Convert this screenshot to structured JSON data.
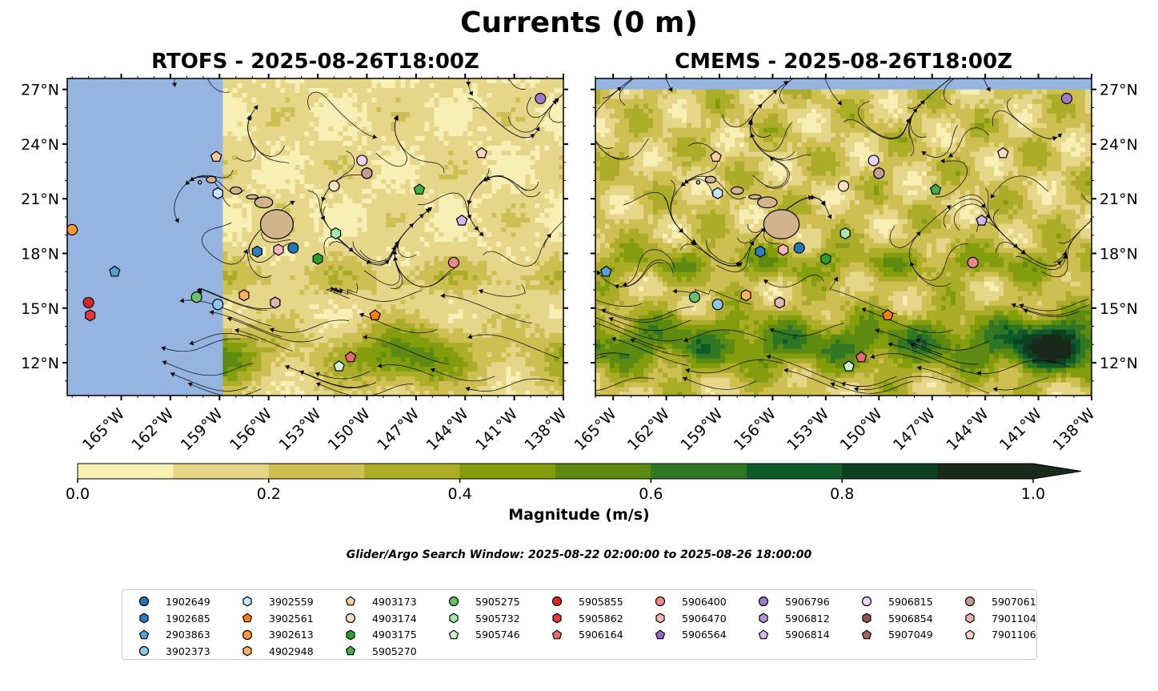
{
  "figure": {
    "suptitle": "Currents (0 m)",
    "window_note": "Glider/Argo Search Window: 2025-08-22 02:00:00 to 2025-08-26 18:00:00"
  },
  "colors": {
    "land": "#d2b48c",
    "missing": "#96b4e0",
    "colorbar": [
      "#f7efb4",
      "#e5d689",
      "#cdbf52",
      "#abad28",
      "#839d0d",
      "#5d8a10",
      "#307724",
      "#0f5c2a",
      "#0c4020",
      "#1a2a1a"
    ]
  },
  "chart_data": [
    {
      "type": "heatmap",
      "title": "RTOFS - 2025-08-26T18:00Z",
      "variable": "Magnitude (m/s)",
      "xlim": [
        -168.3,
        -138
      ],
      "ylim": [
        10.2,
        27.6
      ],
      "xticks": [
        "165°W",
        "162°W",
        "159°W",
        "156°W",
        "153°W",
        "150°W",
        "147°W",
        "144°W",
        "141°W",
        "138°W"
      ],
      "xtick_values": [
        -165,
        -162,
        -159,
        -156,
        -153,
        -150,
        -147,
        -144,
        -141,
        -138
      ],
      "yticks": [
        "27°N",
        "24°N",
        "21°N",
        "18°N",
        "15°N",
        "12°N"
      ],
      "ytick_values": [
        27,
        24,
        21,
        18,
        15,
        12
      ],
      "ytick_side": "left",
      "data_coverage_west_edge": -158.8,
      "speed_field": "0-0.3 m/s over most of the domain; 0.5-0.8 m/s in an east-west band near 11-14°N",
      "overlay": "streamlines with arrows"
    },
    {
      "type": "heatmap",
      "title": "CMEMS - 2025-08-26T18:00Z",
      "variable": "Magnitude (m/s)",
      "xlim": [
        -166.0,
        -138
      ],
      "ylim": [
        10.2,
        27.6
      ],
      "xticks": [
        "165°W",
        "162°W",
        "159°W",
        "156°W",
        "153°W",
        "150°W",
        "147°W",
        "144°W",
        "141°W",
        "138°W"
      ],
      "xtick_values": [
        -165,
        -162,
        -159,
        -156,
        -153,
        -150,
        -147,
        -144,
        -141,
        -138
      ],
      "yticks": [
        "27°N",
        "24°N",
        "21°N",
        "18°N",
        "15°N",
        "12°N"
      ],
      "ytick_values": [
        27,
        24,
        21,
        18,
        15,
        12
      ],
      "ytick_side": "right",
      "data_coverage_north_edge": 27.0,
      "speed_field": "many eddies 0.3-0.6 m/s; strongest 0.8-1.0 m/s near 13°N, 140°W",
      "overlay": "streamlines with arrows"
    },
    {
      "type": "colorbar",
      "label": "Magnitude (m/s)",
      "levels": [
        0.0,
        0.1,
        0.2,
        0.3,
        0.4,
        0.5,
        0.6,
        0.7,
        0.8,
        0.9,
        1.0
      ],
      "ticks": [
        "0.0",
        "0.2",
        "0.4",
        "0.6",
        "0.8",
        "1.0"
      ],
      "tick_values": [
        0.0,
        0.2,
        0.4,
        0.6,
        0.8,
        1.0
      ],
      "extend": "max"
    }
  ],
  "floats": [
    {
      "id": "1902649",
      "marker": "circle",
      "color": "#1f77b4",
      "lon": -154.5,
      "lat": 18.3
    },
    {
      "id": "1902685",
      "marker": "hexagon",
      "color": "#2a80c0",
      "lon": -156.7,
      "lat": 18.1
    },
    {
      "id": "2903863",
      "marker": "pentagon",
      "color": "#5aa0d8",
      "lon": -165.4,
      "lat": 17.0
    },
    {
      "id": "3902373",
      "marker": "circle",
      "color": "#8cc6e8",
      "lon": -159.1,
      "lat": 15.2
    },
    {
      "id": "3902559",
      "marker": "hexagon",
      "color": "#c6e4f6",
      "lon": -159.1,
      "lat": 21.3
    },
    {
      "id": "3902561",
      "marker": "pentagon",
      "color": "#ff7f0e",
      "lon": -149.5,
      "lat": 14.6
    },
    {
      "id": "3902613",
      "marker": "circle",
      "color": "#ff9933",
      "lon": -168.0,
      "lat": 19.3
    },
    {
      "id": "4902948",
      "marker": "hexagon",
      "color": "#ffb266",
      "lon": -157.5,
      "lat": 15.7
    },
    {
      "id": "4903173",
      "marker": "pentagon",
      "color": "#ffcc99",
      "lon": -159.2,
      "lat": 23.3
    },
    {
      "id": "4903174",
      "marker": "circle",
      "color": "#ffe0bf",
      "lon": -152.0,
      "lat": 21.7
    },
    {
      "id": "4903175",
      "marker": "hexagon",
      "color": "#2ca02c",
      "lon": -153.0,
      "lat": 17.7
    },
    {
      "id": "5905270",
      "marker": "pentagon",
      "color": "#44b044",
      "lon": -146.8,
      "lat": 21.5
    },
    {
      "id": "5905275",
      "marker": "circle",
      "color": "#66c266",
      "lon": -160.4,
      "lat": 15.6
    },
    {
      "id": "5905732",
      "marker": "hexagon",
      "color": "#a6e6a6",
      "lon": -151.9,
      "lat": 19.1
    },
    {
      "id": "5905746",
      "marker": "pentagon",
      "color": "#d0f5d0",
      "lon": -151.7,
      "lat": 11.8
    },
    {
      "id": "5905855",
      "marker": "circle",
      "color": "#d62728",
      "lon": -167.0,
      "lat": 15.3
    },
    {
      "id": "5905862",
      "marker": "hexagon",
      "color": "#e03a3a",
      "lon": -166.9,
      "lat": 14.6
    },
    {
      "id": "5906164",
      "marker": "pentagon",
      "color": "#e86a6a",
      "lon": -151.0,
      "lat": 12.3
    },
    {
      "id": "5906400",
      "marker": "circle",
      "color": "#f08a8a",
      "lon": -144.7,
      "lat": 17.5
    },
    {
      "id": "5906470",
      "marker": "hexagon",
      "color": "#f8b8b8",
      "lon": -155.4,
      "lat": 18.2
    },
    {
      "id": "5906564",
      "marker": "pentagon",
      "color": "#9467bd",
      "lon": -144.2,
      "lat": 19.8
    },
    {
      "id": "5906796",
      "marker": "circle",
      "color": "#a07ac8",
      "lon": -139.4,
      "lat": 26.5
    },
    {
      "id": "5906812",
      "marker": "hexagon",
      "color": "#b894d6",
      "lon": -155.6,
      "lat": 15.3
    },
    {
      "id": "5906814",
      "marker": "pentagon",
      "color": "#d4b8ec",
      "lon": -144.2,
      "lat": 19.8
    },
    {
      "id": "5906815",
      "marker": "circle",
      "color": "#e8d4f8",
      "lon": -150.3,
      "lat": 23.1
    },
    {
      "id": "5906854",
      "marker": "hexagon",
      "color": "#8c564b",
      "lon": -150.0,
      "lat": 22.4
    },
    {
      "id": "5907049",
      "marker": "pentagon",
      "color": "#a0665a",
      "lon": -150.0,
      "lat": 22.4
    },
    {
      "id": "5907061",
      "marker": "circle",
      "color": "#c49c94",
      "lon": -150.0,
      "lat": 22.4
    },
    {
      "id": "7901104",
      "marker": "hexagon",
      "color": "#e0b8ae",
      "lon": -155.6,
      "lat": 15.3
    },
    {
      "id": "7901106",
      "marker": "pentagon",
      "color": "#fcd4c6",
      "lon": -143.0,
      "lat": 23.5
    }
  ],
  "legend": {
    "columns": [
      [
        "1902649",
        "1902685",
        "2903863",
        "3902373"
      ],
      [
        "3902559",
        "3902561",
        "3902613",
        "4902948"
      ],
      [
        "4903173",
        "4903174",
        "4903175",
        "5905270"
      ],
      [
        "5905275",
        "5905732",
        "5905746"
      ],
      [
        "5905855",
        "5905862",
        "5906164"
      ],
      [
        "5906400",
        "5906470",
        "5906564"
      ],
      [
        "5906796",
        "5906812",
        "5906814"
      ],
      [
        "5906815",
        "5906854",
        "5907049"
      ],
      [
        "5907061",
        "7901104",
        "7901106"
      ]
    ]
  }
}
